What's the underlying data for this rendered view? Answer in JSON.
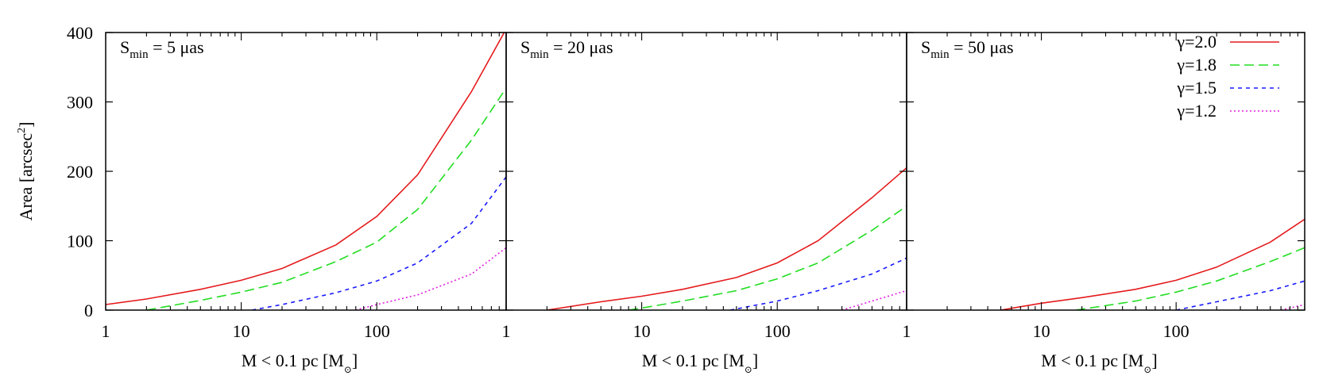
{
  "chart_data": {
    "type": "line",
    "ylabel": "Area [arcsec",
    "ylabel_sup": "2",
    "ylabel_tail": "]",
    "ylim": [
      0,
      400
    ],
    "yticks": [
      "0",
      "100",
      "200",
      "300",
      "400"
    ],
    "xscale": "log",
    "xlim": [
      1,
      900
    ],
    "xticks": [
      "1",
      "10",
      "100"
    ],
    "xlabel_main": "M < 0.1 pc [M",
    "xlabel_sub": "⊙",
    "xlabel_tail": "]",
    "legend": {
      "position": "top-right",
      "entries": [
        {
          "label": "γ=2.0",
          "color": "#e41a1c",
          "dash": "solid"
        },
        {
          "label": "γ=1.8",
          "color": "#22dd22",
          "dash": "dashed"
        },
        {
          "label": "γ=1.5",
          "color": "#1a1aff",
          "dash": "shortdash"
        },
        {
          "label": "γ=1.2",
          "color": "#e020e0",
          "dash": "dotted"
        }
      ]
    },
    "panels": [
      {
        "label_main": "S",
        "label_sub": "min",
        "label_tail": " = 5 μas",
        "series": [
          {
            "gamma": "2.0",
            "x": [
              1,
              2,
              5,
              10,
              20,
              50,
              100,
              200,
              500,
              900
            ],
            "y": [
              8,
              16,
              30,
              43,
              60,
              94,
              135,
              195,
              315,
              405
            ]
          },
          {
            "gamma": "1.8",
            "x": [
              2,
              5,
              10,
              20,
              50,
              100,
              200,
              500,
              900
            ],
            "y": [
              0,
              14,
              26,
              40,
              70,
              98,
              145,
              245,
              320
            ]
          },
          {
            "gamma": "1.5",
            "x": [
              12,
              20,
              50,
              100,
              200,
              500,
              900
            ],
            "y": [
              0,
              8,
              25,
              42,
              68,
              125,
              192
            ]
          },
          {
            "gamma": "1.2",
            "x": [
              70,
              100,
              200,
              500,
              900
            ],
            "y": [
              0,
              8,
              22,
              52,
              90
            ]
          }
        ]
      },
      {
        "label_main": "S",
        "label_sub": "min",
        "label_tail": " = 20 μas",
        "series": [
          {
            "gamma": "2.0",
            "x": [
              2,
              5,
              10,
              20,
              50,
              100,
              200,
              500,
              900
            ],
            "y": [
              0,
              12,
              20,
              30,
              47,
              68,
              100,
              162,
              205
            ]
          },
          {
            "gamma": "1.8",
            "x": [
              8,
              10,
              20,
              50,
              100,
              200,
              500,
              900
            ],
            "y": [
              0,
              3,
              13,
              28,
              45,
              68,
              115,
              150
            ]
          },
          {
            "gamma": "1.5",
            "x": [
              45,
              100,
              200,
              500,
              900
            ],
            "y": [
              0,
              13,
              28,
              52,
              75
            ]
          },
          {
            "gamma": "1.2",
            "x": [
              300,
              500,
              900
            ],
            "y": [
              0,
              13,
              28
            ]
          }
        ]
      },
      {
        "label_main": "S",
        "label_sub": "min",
        "label_tail": " = 50 μas",
        "series": [
          {
            "gamma": "2.0",
            "x": [
              5,
              10,
              20,
              50,
              100,
              200,
              500,
              900
            ],
            "y": [
              0,
              10,
              18,
              30,
              43,
              62,
              98,
              131
            ]
          },
          {
            "gamma": "1.8",
            "x": [
              18,
              50,
              100,
              200,
              500,
              900
            ],
            "y": [
              0,
              13,
              26,
              42,
              70,
              90
            ]
          },
          {
            "gamma": "1.5",
            "x": [
              100,
              200,
              500,
              900
            ],
            "y": [
              0,
              12,
              28,
              42
            ]
          },
          {
            "gamma": "1.2",
            "x": [
              600,
              900
            ],
            "y": [
              0,
              8
            ]
          }
        ]
      }
    ]
  }
}
